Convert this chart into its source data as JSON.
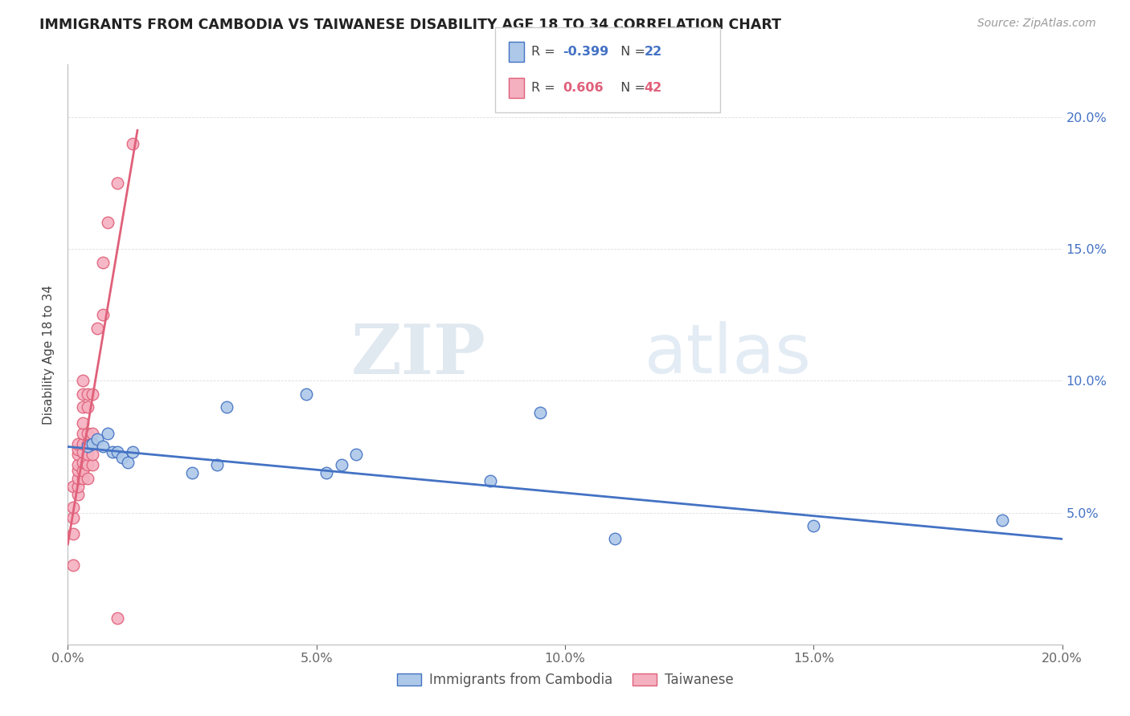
{
  "title": "IMMIGRANTS FROM CAMBODIA VS TAIWANESE DISABILITY AGE 18 TO 34 CORRELATION CHART",
  "source": "Source: ZipAtlas.com",
  "ylabel": "Disability Age 18 to 34",
  "xlim": [
    0,
    0.2
  ],
  "ylim": [
    0,
    0.22
  ],
  "xtick_labels": [
    "0.0%",
    "5.0%",
    "10.0%",
    "15.0%",
    "20.0%"
  ],
  "xtick_vals": [
    0.0,
    0.05,
    0.1,
    0.15,
    0.2
  ],
  "ytick_labels_right": [
    "5.0%",
    "10.0%",
    "15.0%",
    "20.0%"
  ],
  "ytick_vals": [
    0.05,
    0.1,
    0.15,
    0.2
  ],
  "legend_blue_r": "-0.399",
  "legend_blue_n": "22",
  "legend_pink_r": "0.606",
  "legend_pink_n": "42",
  "legend_blue_label": "Immigrants from Cambodia",
  "legend_pink_label": "Taiwanese",
  "blue_color": "#adc8e8",
  "pink_color": "#f5b0c0",
  "blue_line_color": "#4472C4",
  "pink_line_color": "#e0607a",
  "watermark_zip": "ZIP",
  "watermark_atlas": "atlas",
  "blue_scatter_x": [
    0.004,
    0.005,
    0.006,
    0.007,
    0.008,
    0.009,
    0.01,
    0.011,
    0.012,
    0.013,
    0.025,
    0.03,
    0.032,
    0.048,
    0.052,
    0.055,
    0.058,
    0.085,
    0.095,
    0.11,
    0.15,
    0.188
  ],
  "blue_scatter_y": [
    0.075,
    0.076,
    0.078,
    0.075,
    0.08,
    0.073,
    0.073,
    0.071,
    0.069,
    0.073,
    0.065,
    0.068,
    0.09,
    0.095,
    0.065,
    0.068,
    0.072,
    0.062,
    0.088,
    0.04,
    0.045,
    0.047
  ],
  "pink_scatter_x": [
    0.001,
    0.001,
    0.001,
    0.001,
    0.001,
    0.002,
    0.002,
    0.002,
    0.002,
    0.002,
    0.002,
    0.002,
    0.002,
    0.003,
    0.003,
    0.003,
    0.003,
    0.003,
    0.003,
    0.003,
    0.003,
    0.003,
    0.003,
    0.004,
    0.004,
    0.004,
    0.004,
    0.004,
    0.004,
    0.004,
    0.005,
    0.005,
    0.005,
    0.005,
    0.005,
    0.006,
    0.007,
    0.007,
    0.008,
    0.01,
    0.01,
    0.013
  ],
  "pink_scatter_y": [
    0.03,
    0.042,
    0.048,
    0.052,
    0.06,
    0.057,
    0.06,
    0.063,
    0.066,
    0.068,
    0.072,
    0.074,
    0.076,
    0.063,
    0.066,
    0.069,
    0.073,
    0.076,
    0.08,
    0.084,
    0.09,
    0.095,
    0.1,
    0.063,
    0.068,
    0.072,
    0.076,
    0.08,
    0.09,
    0.095,
    0.068,
    0.072,
    0.076,
    0.08,
    0.095,
    0.12,
    0.125,
    0.145,
    0.16,
    0.175,
    0.01,
    0.19
  ],
  "blue_line_x_start": 0.0,
  "blue_line_x_end": 0.2,
  "blue_line_y_start": 0.075,
  "blue_line_y_end": 0.04,
  "pink_line_x_start": 0.0,
  "pink_line_x_end": 0.014,
  "pink_line_y_start": 0.038,
  "pink_line_y_end": 0.195
}
